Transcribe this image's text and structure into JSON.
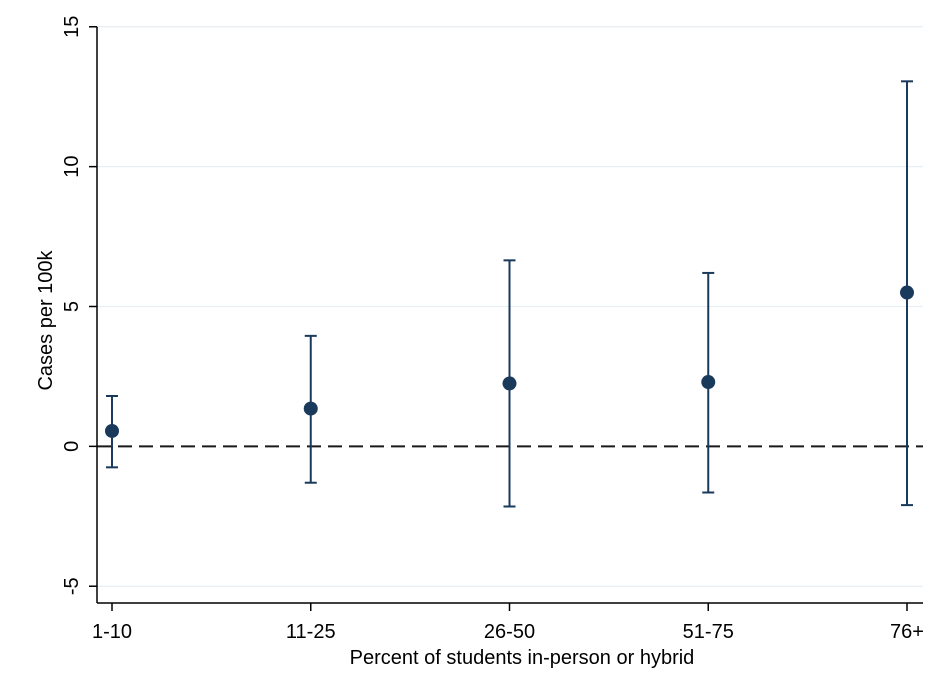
{
  "chart_data": {
    "type": "scatter",
    "subtype": "point-with-confidence-interval",
    "title": "",
    "xlabel": "Percent of students in-person or hybrid",
    "ylabel": "Cases per 100k",
    "categories": [
      "1-10",
      "11-25",
      "26-50",
      "51-75",
      "76+"
    ],
    "series": [
      {
        "estimates": [
          0.55,
          1.35,
          2.25,
          2.3,
          5.5
        ],
        "ci_lower": [
          -0.75,
          -1.3,
          -2.15,
          -1.65,
          -2.1
        ],
        "ci_upper": [
          1.8,
          3.95,
          6.65,
          6.2,
          13.05
        ]
      }
    ],
    "ylim": [
      -5.6,
      15.6
    ],
    "yticks": [
      -5,
      0,
      5,
      10,
      15
    ],
    "ytick_labels": [
      "-5",
      "0",
      "5",
      "10",
      "15"
    ],
    "reference_line": {
      "y": 0,
      "style": "dashed",
      "color": "#1a1a1a"
    },
    "grid": {
      "horizontal": true,
      "vertical": false
    },
    "colors": {
      "marker": "#1a3a5c",
      "grid": "#e8eef2",
      "axis": "#000000"
    }
  }
}
